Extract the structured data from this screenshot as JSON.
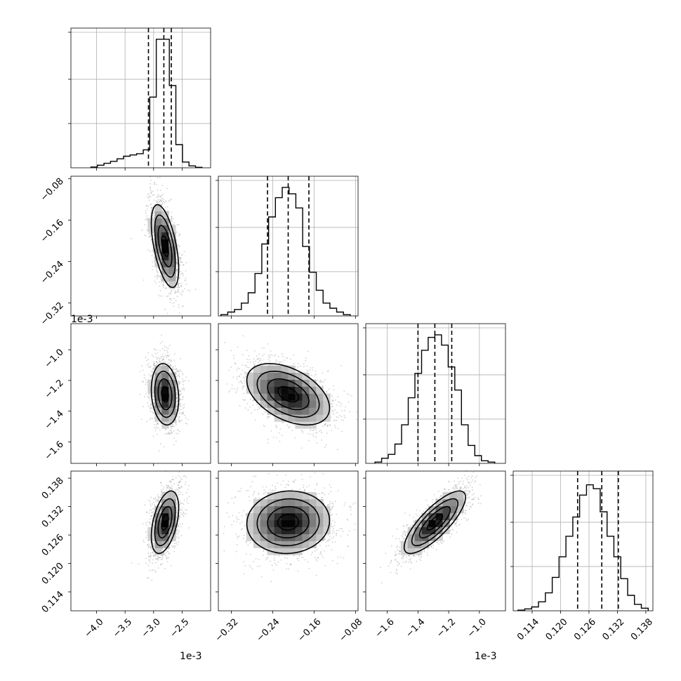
{
  "chart_data": {
    "type": "corner",
    "n_params": 4,
    "histogram_dashes": "quantiles 16% / 50% / 84%",
    "params": [
      {
        "index": 0,
        "range": [
          -4.45,
          -2.0
        ],
        "ticks": [
          -4.0,
          -3.5,
          -3.0,
          -2.5
        ],
        "tick_labels": [
          "−4.0",
          "−3.5",
          "−3.0",
          "−2.5"
        ],
        "offset_label": "1e-3",
        "mean": -2.8,
        "sd": 0.12,
        "quantiles": [
          -3.09,
          -2.82,
          -2.69
        ],
        "hist_counts": [
          0.006,
          0.02,
          0.035,
          0.05,
          0.07,
          0.09,
          0.1,
          0.11,
          0.14,
          0.55,
          1.0,
          1.0,
          0.64,
          0.18,
          0.045,
          0.015,
          0.004
        ],
        "hist_range": [
          -4.1,
          -2.15
        ]
      },
      {
        "index": 1,
        "range": [
          -0.345,
          -0.075
        ],
        "ticks": [
          -0.32,
          -0.24,
          -0.16,
          -0.08
        ],
        "tick_labels": [
          "−0.32",
          "−0.24",
          "−0.16",
          "−0.08"
        ],
        "offset_label": "",
        "mean": -0.21,
        "sd": 0.04,
        "quantiles": [
          -0.25,
          -0.21,
          -0.17
        ],
        "hist_counts": [
          0.01,
          0.03,
          0.05,
          0.1,
          0.18,
          0.33,
          0.56,
          0.77,
          0.92,
          1.0,
          0.95,
          0.84,
          0.54,
          0.34,
          0.2,
          0.1,
          0.06,
          0.03,
          0.01
        ],
        "hist_range": [
          -0.34,
          -0.09
        ]
      },
      {
        "index": 2,
        "range": [
          -1.74,
          -0.83
        ],
        "ticks": [
          -1.6,
          -1.4,
          -1.2,
          -1.0
        ],
        "tick_labels": [
          "−1.6",
          "−1.4",
          "−1.2",
          "−1.0"
        ],
        "offset_label": "1e-3",
        "mean": -1.29,
        "sd": 0.1,
        "quantiles": [
          -1.4,
          -1.29,
          -1.18
        ],
        "hist_counts": [
          0.01,
          0.04,
          0.07,
          0.15,
          0.3,
          0.51,
          0.7,
          0.88,
          0.98,
          1.0,
          0.92,
          0.75,
          0.57,
          0.3,
          0.14,
          0.06,
          0.02,
          0.01
        ],
        "hist_range": [
          -1.68,
          -0.9
        ]
      },
      {
        "index": 3,
        "range": [
          0.11,
          0.1395
        ],
        "ticks": [
          0.114,
          0.12,
          0.126,
          0.132,
          0.138
        ],
        "tick_labels": [
          "0.114",
          "0.120",
          "0.126",
          "0.132",
          "0.138"
        ],
        "offset_label": "",
        "mean": 0.1287,
        "sd": 0.0033,
        "quantiles": [
          0.1236,
          0.1287,
          0.1322
        ],
        "hist_counts": [
          0.005,
          0.015,
          0.03,
          0.07,
          0.14,
          0.26,
          0.42,
          0.58,
          0.73,
          0.9,
          0.98,
          0.95,
          0.77,
          0.58,
          0.42,
          0.25,
          0.12,
          0.05,
          0.02
        ],
        "hist_range": [
          0.111,
          0.1385
        ]
      }
    ],
    "pairs": [
      {
        "row": 1,
        "col": 0,
        "rho": -0.55
      },
      {
        "row": 2,
        "col": 0,
        "rho": -0.15
      },
      {
        "row": 2,
        "col": 1,
        "rho": -0.45
      },
      {
        "row": 3,
        "col": 0,
        "rho": 0.45
      },
      {
        "row": 3,
        "col": 1,
        "rho": 0.05
      },
      {
        "row": 3,
        "col": 2,
        "rho": 0.8
      }
    ]
  }
}
